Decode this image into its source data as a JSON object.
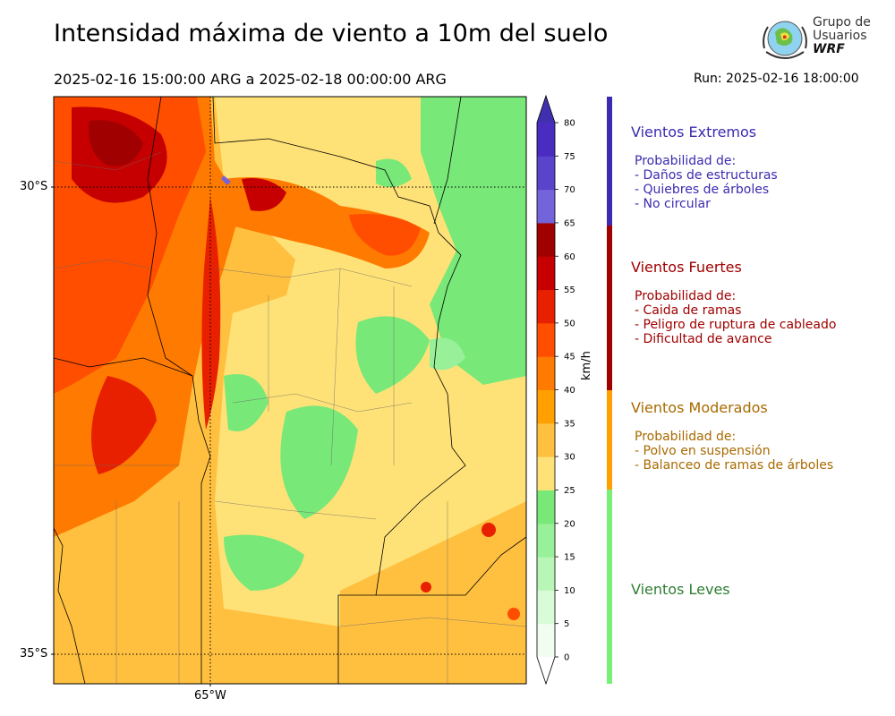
{
  "header": {
    "title": "Intensidad máxima de viento a 10m del suelo",
    "period": "2025-02-16 15:00:00 ARG  a  2025-02-18 00:00:00 ARG",
    "run": "Run: 2025-02-16 18:00:00"
  },
  "logo": {
    "text_line1": "Grupo de",
    "text_line2": "Usuarios",
    "text_line3": "WRF"
  },
  "map": {
    "lat_labels": [
      "30°S",
      "35°S"
    ],
    "lon_labels": [
      "65°W"
    ],
    "region": "Centro de Argentina"
  },
  "colorbar": {
    "unit": "km/h",
    "ticks": [
      "0",
      "5",
      "10",
      "15",
      "20",
      "25",
      "30",
      "35",
      "40",
      "45",
      "50",
      "55",
      "60",
      "65",
      "70",
      "75",
      "80"
    ],
    "colors": [
      "#f0fdf0",
      "#d8fbd8",
      "#b8f6b8",
      "#98f098",
      "#78e878",
      "#ffe277",
      "#ffc040",
      "#ffa000",
      "#ff7a00",
      "#ff4e00",
      "#e82000",
      "#c60000",
      "#a00000",
      "#7464dc",
      "#5a44cc",
      "#4a2cc0"
    ],
    "extend_max_color": "#4030b0",
    "extend_min_color": "#ffffff"
  },
  "categories": [
    {
      "title": "Vientos Extremos",
      "color": "#3a2bb0",
      "desc": [
        "Probabilidad de:",
        "- Daños de estructuras",
        "- Quiebres de árboles",
        "- No circular"
      ]
    },
    {
      "title": "Vientos Fuertes",
      "color": "#a00000",
      "desc": [
        "Probabilidad de:",
        "- Caida de ramas",
        "- Peligro de ruptura de cableado",
        "- Dificultad de avance"
      ]
    },
    {
      "title": "Vientos Moderados",
      "color": "#a86a00",
      "desc": [
        "Probabilidad de:",
        "- Polvo en suspensión",
        "- Balanceo de ramas de árboles"
      ]
    },
    {
      "title": "Vientos Leves",
      "color": "#2e7d32",
      "desc": []
    }
  ],
  "category_bar_colors": [
    "#3a2bb0",
    "#a00000",
    "#ffa000",
    "#78f078"
  ]
}
